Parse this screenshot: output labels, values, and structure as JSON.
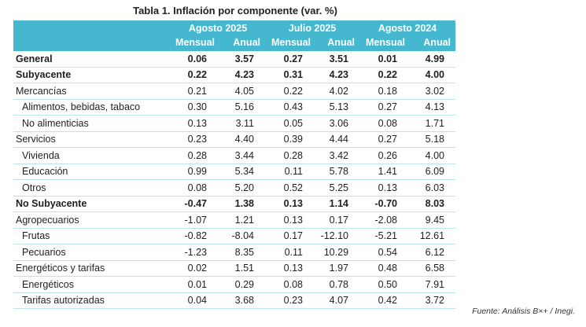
{
  "title": "Tabla 1. Inflación por componente (var. %)",
  "groups": [
    "Agosto 2025",
    "Julio 2025",
    "Agosto 2024"
  ],
  "subheaders": [
    "Mensual",
    "Anual",
    "Mensual",
    "Anual",
    "Mensual",
    "Anual"
  ],
  "rows": [
    {
      "label": "General",
      "values": [
        "0.06",
        "3.57",
        "0.27",
        "3.51",
        "0.01",
        "4.99"
      ]
    },
    {
      "label": "Subyacente",
      "values": [
        "0.22",
        "4.23",
        "0.31",
        "4.23",
        "0.22",
        "4.00"
      ]
    },
    {
      "label": "Mercancías",
      "values": [
        "0.21",
        "4.05",
        "0.22",
        "4.02",
        "0.18",
        "3.02"
      ]
    },
    {
      "label": "Alimentos, bebidas, tabaco",
      "values": [
        "0.30",
        "5.16",
        "0.43",
        "5.13",
        "0.27",
        "4.13"
      ]
    },
    {
      "label": "No alimenticias",
      "values": [
        "0.13",
        "3.11",
        "0.05",
        "3.06",
        "0.08",
        "1.71"
      ]
    },
    {
      "label": "Servicios",
      "values": [
        "0.23",
        "4.40",
        "0.39",
        "4.44",
        "0.27",
        "5.18"
      ]
    },
    {
      "label": "Vivienda",
      "values": [
        "0.28",
        "3.44",
        "0.28",
        "3.42",
        "0.26",
        "4.00"
      ]
    },
    {
      "label": "Educación",
      "values": [
        "0.99",
        "5.34",
        "0.11",
        "5.78",
        "1.41",
        "6.09"
      ]
    },
    {
      "label": "Otros",
      "values": [
        "0.08",
        "5.20",
        "0.52",
        "5.25",
        "0.13",
        "6.03"
      ]
    },
    {
      "label": "No Subyacente",
      "values": [
        "-0.47",
        "1.38",
        "0.13",
        "1.14",
        "-0.70",
        "8.03"
      ]
    },
    {
      "label": "Agropecuarios",
      "values": [
        "-1.07",
        "1.21",
        "0.13",
        "0.17",
        "-2.08",
        "9.45"
      ]
    },
    {
      "label": "Frutas",
      "values": [
        "-0.82",
        "-8.04",
        "0.17",
        "-12.10",
        "-5.21",
        "12.61"
      ]
    },
    {
      "label": "Pecuarios",
      "values": [
        "-1.23",
        "8.35",
        "0.11",
        "10.29",
        "0.54",
        "6.12"
      ]
    },
    {
      "label": "Energéticos y tarifas",
      "values": [
        "0.02",
        "1.51",
        "0.13",
        "1.97",
        "0.48",
        "6.58"
      ]
    },
    {
      "label": "Energéticos",
      "values": [
        "0.01",
        "0.29",
        "0.08",
        "0.78",
        "0.50",
        "7.91"
      ]
    },
    {
      "label": "Tarifas autorizadas",
      "values": [
        "0.04",
        "3.68",
        "0.23",
        "4.07",
        "0.42",
        "3.72"
      ]
    }
  ],
  "source": "Fuente: Análisis B×+ /  Inegi.",
  "colors": {
    "header_bg": "#45b8d0",
    "header_text": "#ffffff",
    "row_rule": "#bfe3ec"
  }
}
